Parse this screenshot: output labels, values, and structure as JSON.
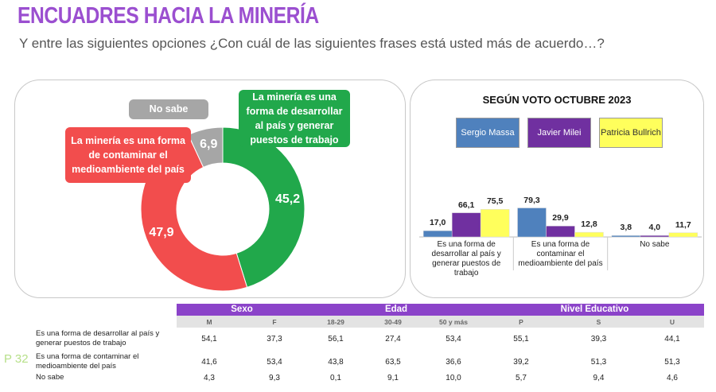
{
  "header": {
    "title": "ENCUADRES HACIA LA MINERÍA",
    "subtitle": "Y entre las siguientes opciones ¿Con cuál de las siguientes frases está usted más de acuerdo…?"
  },
  "page_label": "P 32",
  "chart_data": [
    {
      "type": "pie",
      "donut": true,
      "categories": [
        "La minería es una forma de desarrollar al país y generar puestos de trabajo",
        "La minería es una forma de contaminar el medioambiente del país",
        "No sabe"
      ],
      "values": [
        45.2,
        47.9,
        6.9
      ],
      "value_labels": [
        "45,2",
        "47,9",
        "6,9"
      ],
      "colors": [
        "#21a84b",
        "#f24d4d",
        "#a6a6a6"
      ]
    },
    {
      "type": "bar",
      "title": "SEGÚN VOTO OCTUBRE 2023",
      "categories": [
        "Es una forma de desarrollar al país y generar puestos de trabajo",
        "Es una forma de contaminar el medioambiente del país",
        "No sabe"
      ],
      "series": [
        {
          "name": "Sergio Massa",
          "color": "#4f81bd",
          "values": [
            17.0,
            79.3,
            3.8
          ],
          "value_labels": [
            "17,0",
            "79,3",
            "3,8"
          ]
        },
        {
          "name": "Javier Milei",
          "color": "#7030a0",
          "values": [
            66.1,
            29.9,
            4.0
          ],
          "value_labels": [
            "66,1",
            "29,9",
            "4,0"
          ]
        },
        {
          "name": "Patricia Bullrich",
          "color": "#ffff5c",
          "values": [
            75.5,
            12.8,
            11.7
          ],
          "value_labels": [
            "75,5",
            "12,8",
            "11,7"
          ]
        }
      ]
    }
  ],
  "table": {
    "groups": [
      {
        "label": "Sexo",
        "columns": [
          "M",
          "F"
        ]
      },
      {
        "label": "Edad",
        "columns": [
          "18-29",
          "30-49",
          "50 y más"
        ]
      },
      {
        "label": "Nivel Educativo",
        "columns": [
          "P",
          "S",
          "U"
        ]
      }
    ],
    "rows": [
      {
        "label": "Es una forma de desarrollar al país y generar puestos de trabajo",
        "cells": [
          "54,1",
          "37,3",
          "56,1",
          "27,4",
          "53,4",
          "55,1",
          "39,3",
          "44,1"
        ]
      },
      {
        "label": "Es una forma de contaminar el medioambiente del país",
        "cells": [
          "41,6",
          "53,4",
          "43,8",
          "63,5",
          "36,6",
          "39,2",
          "51,3",
          "51,3"
        ]
      },
      {
        "label": "No sabe",
        "cells": [
          "4,3",
          "9,3",
          "0,1",
          "9,1",
          "10,0",
          "5,7",
          "9,4",
          "4,6"
        ]
      }
    ]
  }
}
